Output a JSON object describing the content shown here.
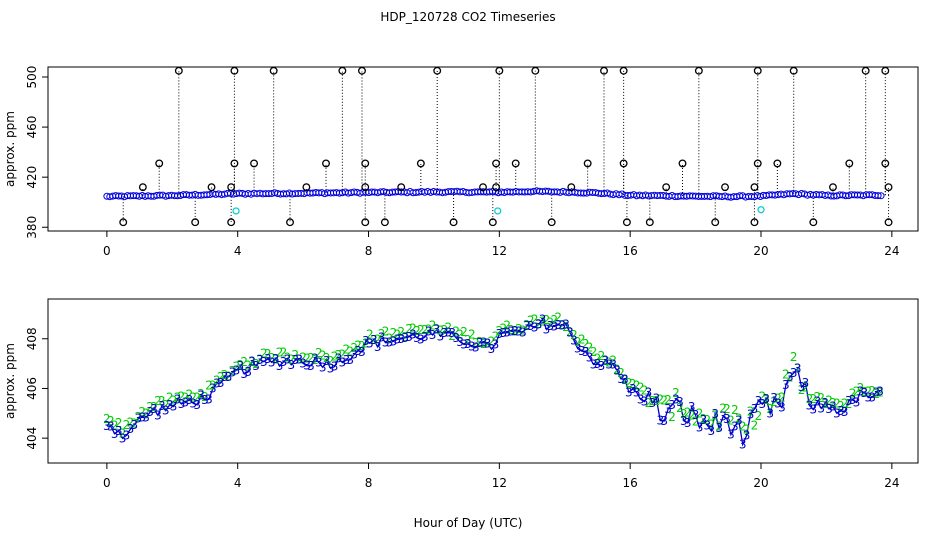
{
  "title": "HDP_120728  CO2 Timeseries",
  "xlabel": "Hour of Day (UTC)",
  "chart_data": [
    {
      "type": "scatter",
      "name": "top",
      "ylabel": "approx. ppm",
      "xlim": [
        -1.8,
        24.8
      ],
      "ylim": [
        377,
        508
      ],
      "xticks": [
        0,
        4,
        8,
        12,
        16,
        20,
        24
      ],
      "yticks": [
        380,
        420,
        460,
        500
      ],
      "series": [
        {
          "name": "co2",
          "color": "#0000dd",
          "baseline": 406,
          "profile": [
            [
              0,
              404.6
            ],
            [
              2,
              405.3
            ],
            [
              4,
              406.8
            ],
            [
              6,
              407.2
            ],
            [
              8,
              407.8
            ],
            [
              10,
              408.2
            ],
            [
              12,
              408.0
            ],
            [
              13,
              408.6
            ],
            [
              14,
              408.2
            ],
            [
              15,
              407.4
            ],
            [
              16,
              405.5
            ],
            [
              18,
              404.8
            ],
            [
              19,
              404.5
            ],
            [
              20,
              404.8
            ],
            [
              21,
              406.8
            ],
            [
              22,
              405.3
            ],
            [
              23.7,
              405.7
            ]
          ]
        },
        {
          "name": "spikes_high",
          "color": "#000000",
          "y": 505,
          "x": [
            2.2,
            3.9,
            5.1,
            7.2,
            7.8,
            10.1,
            12.0,
            13.1,
            15.2,
            15.8,
            18.1,
            19.9,
            21.0,
            23.2,
            23.8
          ]
        },
        {
          "name": "spikes_431",
          "color": "#000000",
          "y": 431,
          "x": [
            1.6,
            3.9,
            4.5,
            6.7,
            7.9,
            9.6,
            11.9,
            12.5,
            14.7,
            15.8,
            17.6,
            19.9,
            20.5,
            22.7,
            23.8
          ]
        },
        {
          "name": "spikes_412",
          "color": "#000000",
          "y": 412,
          "x": [
            1.1,
            3.2,
            3.8,
            6.1,
            7.9,
            9.0,
            11.5,
            11.9,
            14.2,
            17.1,
            18.9,
            19.8,
            22.2,
            23.9
          ]
        },
        {
          "name": "spikes_low",
          "color": "#000000",
          "y": 384,
          "x": [
            0.5,
            2.7,
            3.8,
            5.6,
            7.9,
            8.5,
            10.6,
            11.8,
            13.6,
            15.9,
            16.6,
            18.6,
            19.8,
            21.6,
            23.9
          ]
        },
        {
          "name": "cyan_marks",
          "color": "#00cccc",
          "points": [
            [
              3.95,
              393
            ],
            [
              11.95,
              393
            ],
            [
              20.0,
              394
            ]
          ]
        }
      ]
    },
    {
      "type": "line",
      "name": "bottom",
      "ylabel": "approx. ppm",
      "xlim": [
        -1.8,
        24.8
      ],
      "ylim": [
        403.0,
        409.6
      ],
      "xticks": [
        0,
        4,
        8,
        12,
        16,
        20,
        24
      ],
      "yticks": [
        404,
        406,
        408
      ],
      "series": [
        {
          "name": "3",
          "color": "#0000cc",
          "marker": "3",
          "profile": [
            [
              0,
              404.6
            ],
            [
              0.5,
              404.1
            ],
            [
              1,
              404.7
            ],
            [
              1.3,
              405.0
            ],
            [
              2,
              405.3
            ],
            [
              3,
              405.6
            ],
            [
              4,
              406.7
            ],
            [
              5,
              407.1
            ],
            [
              6,
              407.1
            ],
            [
              7,
              407.0
            ],
            [
              8,
              407.8
            ],
            [
              9,
              408.0
            ],
            [
              10,
              408.2
            ],
            [
              11,
              407.9
            ],
            [
              11.7,
              407.6
            ],
            [
              12,
              408.1
            ],
            [
              12.8,
              408.3
            ],
            [
              13.3,
              408.6
            ],
            [
              14,
              408.5
            ],
            [
              14.5,
              407.6
            ],
            [
              15,
              407.0
            ],
            [
              15.5,
              406.9
            ],
            [
              16,
              405.9
            ],
            [
              16.5,
              405.6
            ],
            [
              17,
              404.9
            ],
            [
              17.5,
              405.2
            ],
            [
              18,
              404.7
            ],
            [
              18.6,
              404.5
            ],
            [
              19,
              404.8
            ],
            [
              19.5,
              404.0
            ],
            [
              20,
              405.2
            ],
            [
              20.5,
              405.1
            ],
            [
              21,
              406.7
            ],
            [
              21.5,
              405.3
            ],
            [
              22,
              405.3
            ],
            [
              22.5,
              405.1
            ],
            [
              23,
              405.7
            ],
            [
              23.7,
              405.7
            ]
          ]
        },
        {
          "name": "2",
          "color": "#00cc00",
          "marker": "2",
          "offset": 0.22
        }
      ]
    }
  ]
}
